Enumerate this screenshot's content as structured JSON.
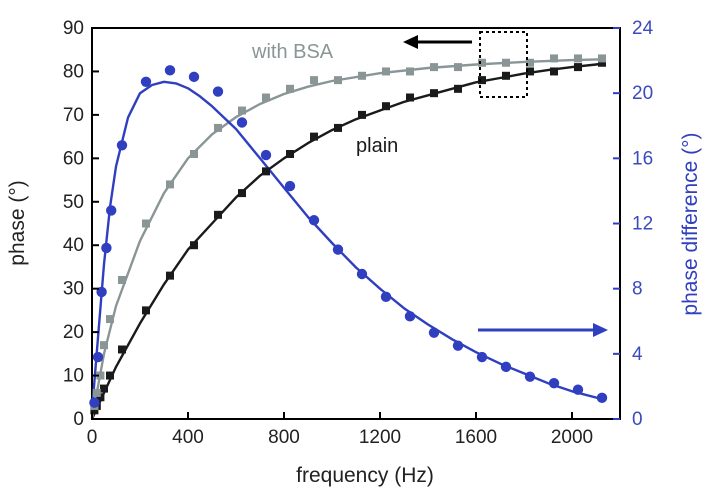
{
  "chart_data": {
    "type": "scatter",
    "title": "",
    "xlabel": "frequency (Hz)",
    "ylabel": "phase (°)",
    "ylabel_right": "phase difference (°)",
    "xlim": [
      0,
      2200
    ],
    "ylim": [
      0,
      90
    ],
    "ylim_right": [
      0,
      24
    ],
    "x_ticks": [
      "0",
      "400",
      "800",
      "1200",
      "1600",
      "2000"
    ],
    "y_ticks": [
      "0",
      "10",
      "20",
      "30",
      "40",
      "50",
      "60",
      "70",
      "80",
      "90"
    ],
    "y_ticks_right": [
      "0",
      "4",
      "8",
      "12",
      "16",
      "20",
      "24"
    ],
    "grid": false,
    "annotations": {
      "with_bsa": "with BSA",
      "plain": "plain"
    },
    "colors": {
      "plain": "#1a1a1a",
      "with_bsa": "#8a9696",
      "difference": "#2f3fc0"
    },
    "series": [
      {
        "name": "plain",
        "axis": "left",
        "marker": "square",
        "x": [
          10,
          20,
          35,
          50,
          75,
          125,
          225,
          325,
          425,
          525,
          625,
          725,
          825,
          925,
          1025,
          1125,
          1225,
          1325,
          1425,
          1525,
          1625,
          1725,
          1825,
          1925,
          2025,
          2125
        ],
        "y": [
          2,
          3,
          5,
          7,
          10,
          16,
          25,
          33,
          40,
          47,
          52,
          57,
          61,
          65,
          67,
          70,
          72,
          74,
          75,
          76,
          78,
          79,
          80,
          80,
          81,
          82
        ]
      },
      {
        "name": "with BSA",
        "axis": "left",
        "marker": "square",
        "x": [
          10,
          20,
          35,
          50,
          75,
          125,
          225,
          325,
          425,
          525,
          625,
          725,
          825,
          925,
          1025,
          1125,
          1225,
          1325,
          1425,
          1525,
          1625,
          1725,
          1825,
          1925,
          2025,
          2125
        ],
        "y": [
          3,
          6,
          10,
          17,
          23,
          32,
          45,
          54,
          61,
          67,
          71,
          74,
          76,
          78,
          78,
          79,
          80,
          80,
          81,
          81,
          82,
          82,
          82,
          83,
          83,
          83
        ]
      },
      {
        "name": "phase difference",
        "axis": "right",
        "marker": "circle",
        "x": [
          10,
          25,
          40,
          60,
          80,
          125,
          225,
          325,
          425,
          525,
          625,
          725,
          825,
          925,
          1025,
          1125,
          1225,
          1325,
          1425,
          1525,
          1625,
          1725,
          1825,
          1925,
          2025,
          2125
        ],
        "y": [
          1.0,
          3.8,
          7.8,
          10.5,
          12.8,
          16.8,
          20.7,
          21.4,
          21.0,
          20.1,
          18.2,
          16.2,
          14.3,
          12.2,
          10.4,
          8.9,
          7.5,
          6.3,
          5.3,
          4.5,
          3.8,
          3.2,
          2.6,
          2.2,
          1.8,
          1.3
        ]
      }
    ],
    "fit_curves": [
      {
        "name": "plain fit",
        "axis": "left",
        "x": [
          0,
          50,
          100,
          200,
          300,
          400,
          500,
          600,
          700,
          800,
          900,
          1000,
          1100,
          1200,
          1300,
          1400,
          1500,
          1600,
          1700,
          1800,
          1900,
          2000,
          2100,
          2130
        ],
        "y": [
          0,
          6,
          12,
          22,
          31,
          39,
          45,
          51,
          56,
          60,
          63.5,
          66.5,
          69,
          71,
          73,
          74.5,
          76,
          77.5,
          78.5,
          79.5,
          80.3,
          81,
          81.6,
          81.8
        ]
      },
      {
        "name": "with BSA fit",
        "axis": "left",
        "x": [
          0,
          50,
          100,
          200,
          300,
          400,
          500,
          600,
          700,
          800,
          900,
          1000,
          1200,
          1400,
          1600,
          1800,
          2000,
          2130
        ],
        "y": [
          0,
          15,
          26,
          41,
          52,
          60,
          65.5,
          69.5,
          72.5,
          74.8,
          76.5,
          77.8,
          79.6,
          80.8,
          81.6,
          82.2,
          82.6,
          82.8
        ]
      },
      {
        "name": "phase difference fit",
        "axis": "right",
        "x": [
          0,
          25,
          50,
          75,
          100,
          150,
          200,
          250,
          300,
          350,
          400,
          450,
          500,
          600,
          700,
          800,
          900,
          1000,
          1100,
          1200,
          1300,
          1400,
          1500,
          1600,
          1700,
          1800,
          1900,
          2000,
          2130
        ],
        "y": [
          0.5,
          5.0,
          9.5,
          13.0,
          15.5,
          18.5,
          20.0,
          20.5,
          20.7,
          20.6,
          20.3,
          19.8,
          19.2,
          17.8,
          16.0,
          14.2,
          12.4,
          10.8,
          9.3,
          8.0,
          6.8,
          5.8,
          4.9,
          4.1,
          3.4,
          2.8,
          2.2,
          1.7,
          1.2
        ]
      }
    ]
  }
}
